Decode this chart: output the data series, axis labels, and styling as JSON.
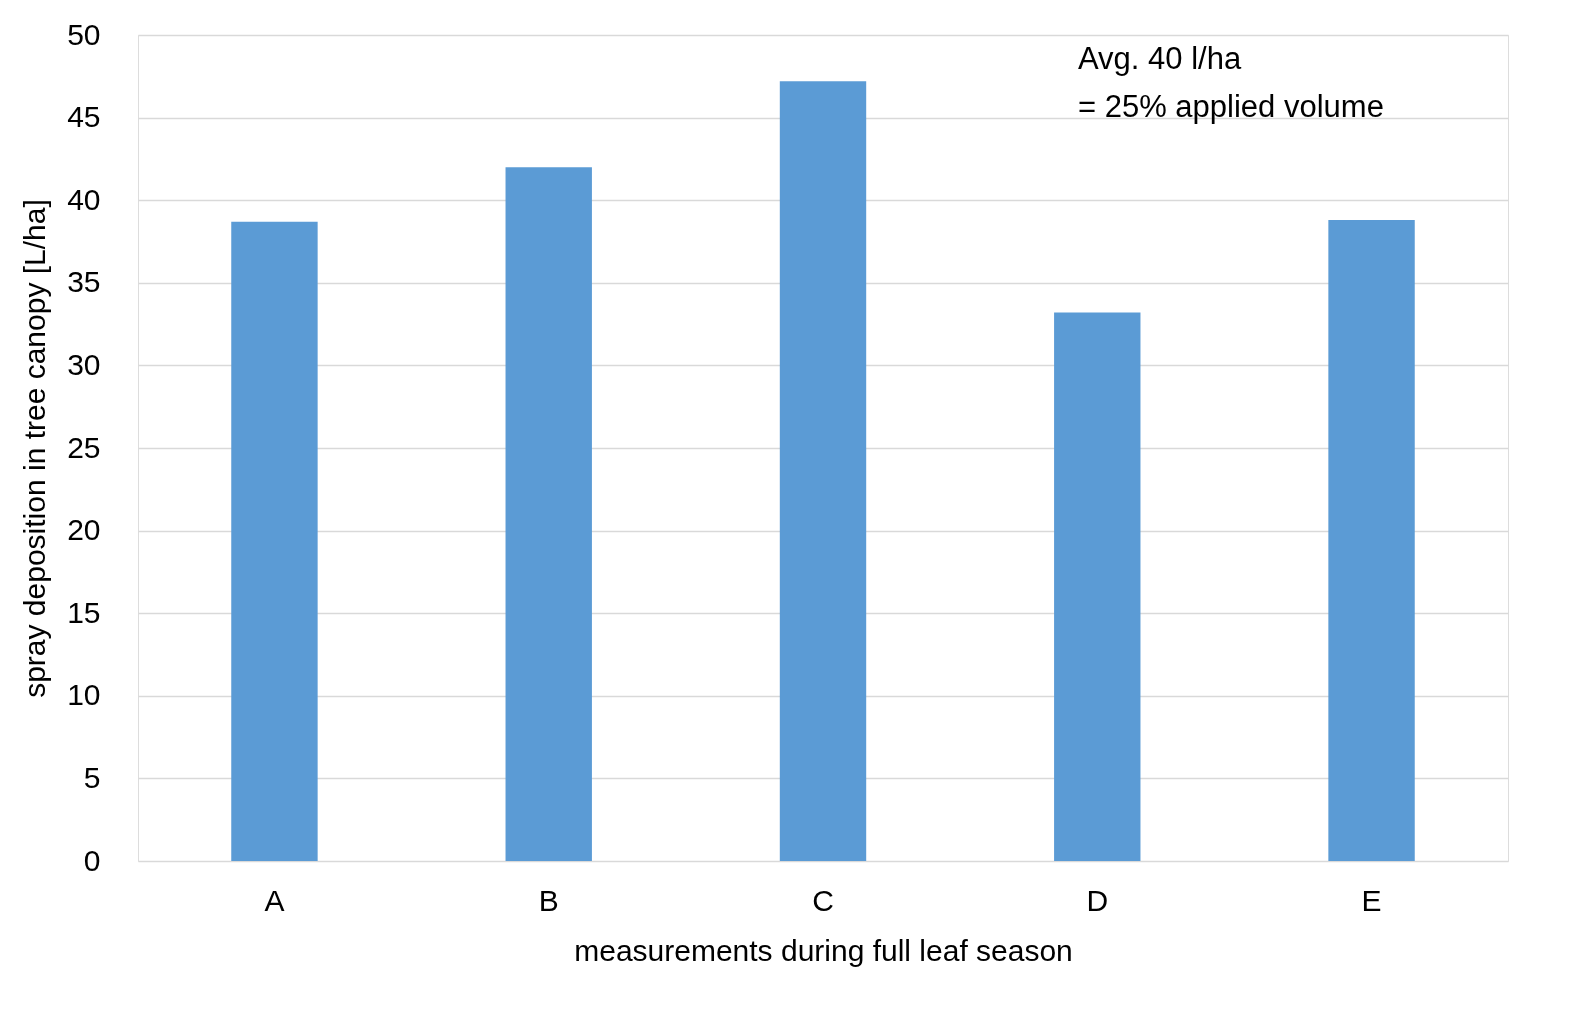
{
  "chart_data": {
    "type": "bar",
    "xlabel": "measurements during full leaf season",
    "ylabel": "spray deposition in tree canopy [L/ha]",
    "categories": [
      "A",
      "B",
      "C",
      "D",
      "E"
    ],
    "values": [
      38.7,
      42.0,
      47.2,
      33.2,
      38.8
    ],
    "color": "#5b9bd5",
    "ylim": [
      0,
      50
    ],
    "yticks": [
      0,
      5,
      10,
      15,
      20,
      25,
      30,
      35,
      40,
      45,
      50
    ],
    "grid": "y",
    "annotations": [
      "Avg. 40 l/ha",
      "= 25% applied volume"
    ]
  }
}
